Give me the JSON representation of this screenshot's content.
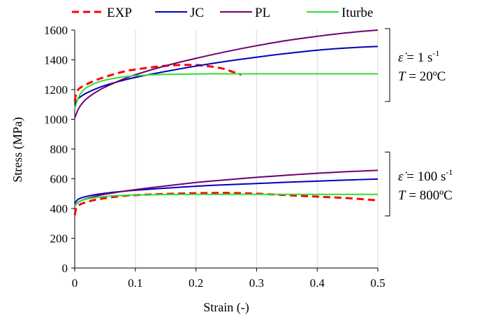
{
  "chart_data": {
    "type": "line",
    "title": "",
    "xlabel": "Strain (-)",
    "ylabel": "Stress (MPa)",
    "xlim": [
      0,
      0.5
    ],
    "ylim": [
      0,
      1600
    ],
    "xticks": [
      0,
      0.1,
      0.2,
      0.3,
      0.4,
      0.5
    ],
    "yticks": [
      0,
      200,
      400,
      600,
      800,
      1000,
      1200,
      1400,
      1600
    ],
    "xtick_labels": [
      "0",
      "0.1",
      "0.2",
      "0.3",
      "0.4",
      "0.5"
    ],
    "ytick_labels": [
      "0",
      "200",
      "400",
      "600",
      "800",
      "1000",
      "1200",
      "1400",
      "1600"
    ],
    "grid": "vertical",
    "legend_position": "top",
    "series": [
      {
        "name": "EXP",
        "color": "#ff0000",
        "dashed": true,
        "groups": [
          {
            "x": [
              0,
              0.003,
              0.01,
              0.03,
              0.05,
              0.08,
              0.1,
              0.15,
              0.2,
              0.24,
              0.26,
              0.275
            ],
            "y": [
              1120,
              1180,
              1215,
              1255,
              1285,
              1320,
              1335,
              1360,
              1365,
              1345,
              1320,
              1300
            ]
          },
          {
            "x": [
              0,
              0.003,
              0.01,
              0.03,
              0.05,
              0.08,
              0.1,
              0.15,
              0.2,
              0.25,
              0.3,
              0.35,
              0.4,
              0.45,
              0.5
            ],
            "y": [
              355,
              405,
              430,
              455,
              470,
              485,
              490,
              498,
              503,
              505,
              500,
              490,
              480,
              470,
              455
            ]
          }
        ]
      },
      {
        "name": "JC",
        "color": "#0000c0",
        "dashed": false,
        "groups": [
          {
            "x": [
              0,
              0.005,
              0.01,
              0.02,
              0.04,
              0.06,
              0.08,
              0.1,
              0.15,
              0.2,
              0.25,
              0.3,
              0.35,
              0.4,
              0.45,
              0.5
            ],
            "y": [
              1100,
              1135,
              1153,
              1178,
              1213,
              1240,
              1262,
              1282,
              1322,
              1358,
              1390,
              1418,
              1443,
              1465,
              1480,
              1490
            ]
          },
          {
            "x": [
              0,
              0.005,
              0.01,
              0.02,
              0.04,
              0.06,
              0.08,
              0.1,
              0.15,
              0.2,
              0.25,
              0.3,
              0.35,
              0.4,
              0.45,
              0.5
            ],
            "y": [
              435,
              460,
              470,
              482,
              497,
              508,
              516,
              523,
              537,
              550,
              560,
              568,
              577,
              584,
              592,
              598
            ]
          }
        ]
      },
      {
        "name": "PL",
        "color": "#70006e",
        "dashed": false,
        "groups": [
          {
            "x": [
              0,
              0.005,
              0.01,
              0.02,
              0.04,
              0.06,
              0.08,
              0.1,
              0.15,
              0.2,
              0.25,
              0.3,
              0.35,
              0.4,
              0.45,
              0.5
            ],
            "y": [
              1010,
              1060,
              1095,
              1140,
              1195,
              1235,
              1270,
              1300,
              1360,
              1410,
              1455,
              1495,
              1530,
              1558,
              1582,
              1600
            ]
          },
          {
            "x": [
              0,
              0.005,
              0.01,
              0.02,
              0.04,
              0.06,
              0.08,
              0.1,
              0.15,
              0.2,
              0.25,
              0.3,
              0.35,
              0.4,
              0.45,
              0.5
            ],
            "y": [
              415,
              440,
              452,
              467,
              488,
              503,
              516,
              527,
              552,
              575,
              593,
              610,
              624,
              637,
              648,
              657
            ]
          }
        ]
      },
      {
        "name": "Iturbe",
        "color": "#33dd33",
        "dashed": false,
        "groups": [
          {
            "x": [
              0,
              0.005,
              0.01,
              0.02,
              0.04,
              0.06,
              0.08,
              0.1,
              0.15,
              0.2,
              0.25,
              0.3,
              0.35,
              0.4,
              0.45,
              0.5
            ],
            "y": [
              1070,
              1135,
              1175,
              1215,
              1252,
              1272,
              1285,
              1293,
              1302,
              1305,
              1306,
              1306,
              1306,
              1306,
              1306,
              1306
            ]
          },
          {
            "x": [
              0,
              0.005,
              0.01,
              0.02,
              0.04,
              0.06,
              0.08,
              0.1,
              0.15,
              0.2,
              0.25,
              0.3,
              0.35,
              0.4,
              0.45,
              0.5
            ],
            "y": [
              415,
              440,
              452,
              464,
              477,
              484,
              488,
              491,
              494,
              495,
              495,
              495,
              495,
              495,
              495,
              495
            ]
          }
        ]
      }
    ],
    "annotations": [
      {
        "rate_sym": "ε̇",
        "rate_eq": " = 1 s",
        "rate_sup": "-1",
        "temp_sym": "T",
        "temp_text": " = 20ºC",
        "y_range": [
          1120,
          1610
        ]
      },
      {
        "rate_sym": "ε̇",
        "rate_eq": " = 100 s",
        "rate_sup": "-1",
        "temp_sym": "T",
        "temp_text": " = 800ºC",
        "y_range": [
          350,
          780
        ]
      }
    ]
  }
}
